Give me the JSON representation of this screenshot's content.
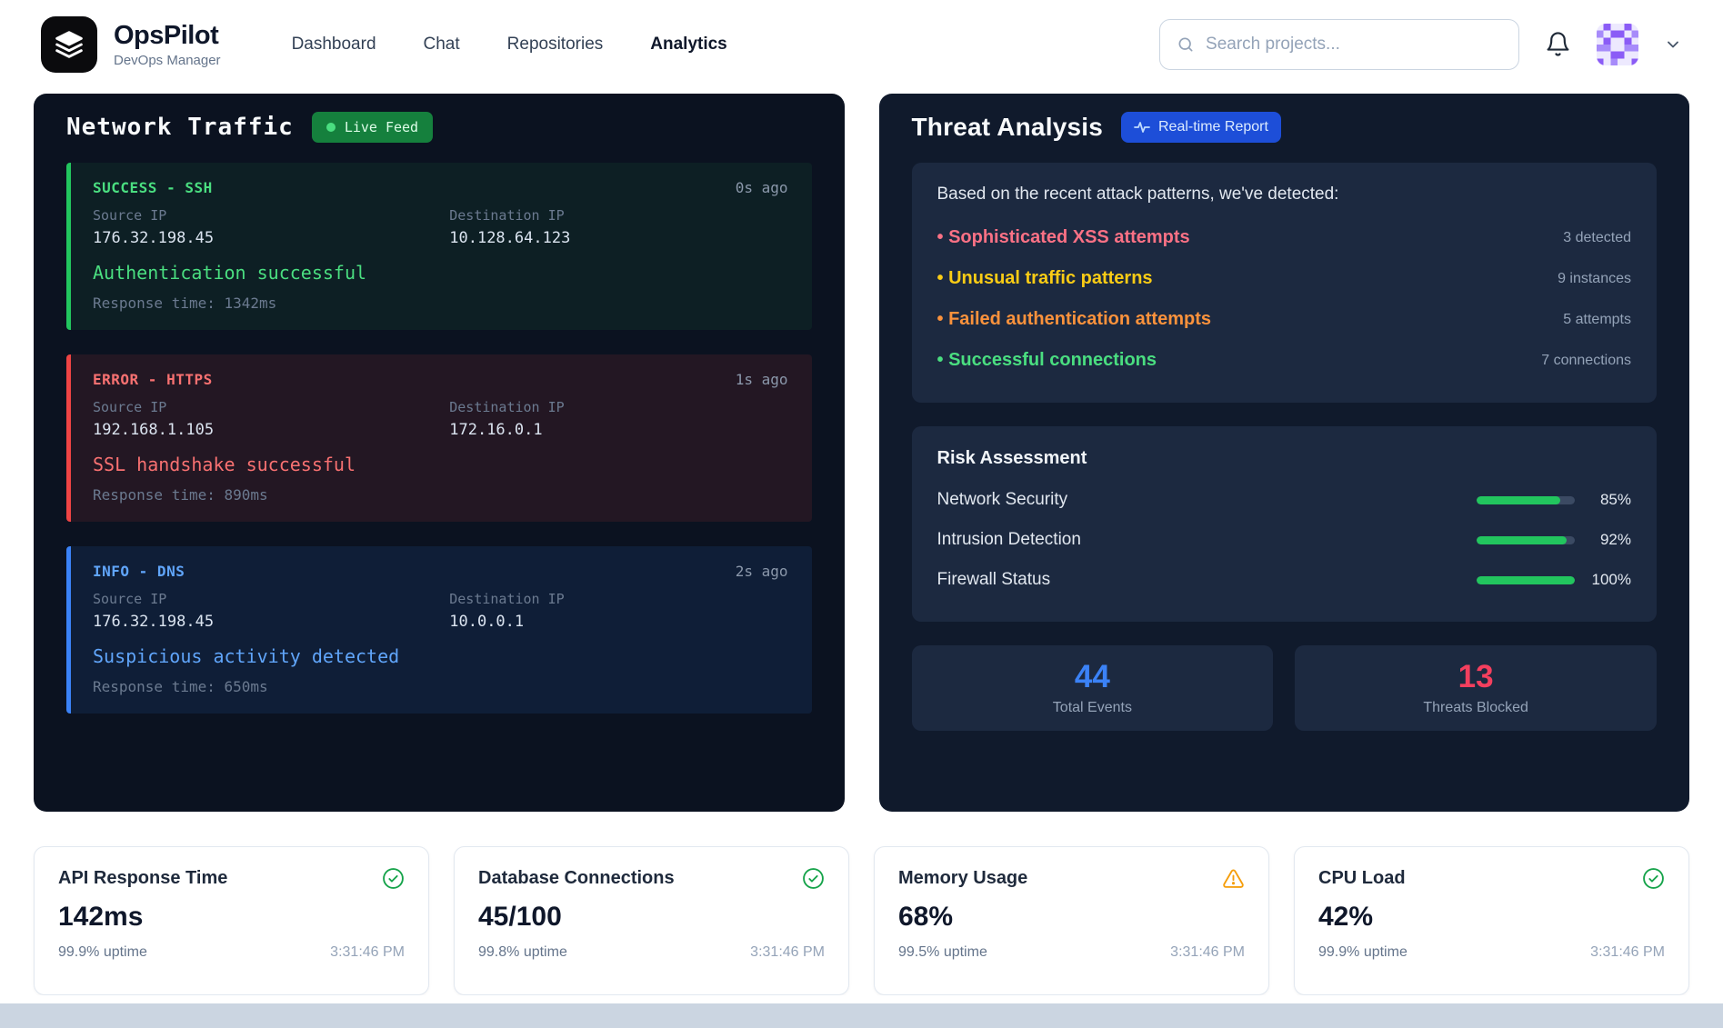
{
  "palette": {
    "success": "#22c55e",
    "error": "#ef4444",
    "info": "#3b82f6",
    "warning": "#f59e0b",
    "badge_live_bg": "#15803d",
    "badge_report_bg": "#1d4ed8"
  },
  "header": {
    "app_name": "OpsPilot",
    "app_subtitle": "DevOps Manager",
    "nav": [
      {
        "label": "Dashboard",
        "active": false
      },
      {
        "label": "Chat",
        "active": false
      },
      {
        "label": "Repositories",
        "active": false
      },
      {
        "label": "Analytics",
        "active": true
      }
    ],
    "search_placeholder": "Search projects..."
  },
  "network_traffic": {
    "title": "Network Traffic",
    "badge": "Live Feed",
    "labels": {
      "source": "Source IP",
      "dest": "Destination IP"
    },
    "entries": [
      {
        "level": "SUCCESS - SSH",
        "time_ago": "0s ago",
        "source_ip": "176.32.198.45",
        "dest_ip": "10.128.64.123",
        "message": "Authentication successful",
        "response": "Response time: 1342ms"
      },
      {
        "level": "ERROR - HTTPS",
        "time_ago": "1s ago",
        "source_ip": "192.168.1.105",
        "dest_ip": "172.16.0.1",
        "message": "SSL handshake successful",
        "response": "Response time: 890ms"
      },
      {
        "level": "INFO - DNS",
        "time_ago": "2s ago",
        "source_ip": "176.32.198.45",
        "dest_ip": "10.0.0.1",
        "message": "Suspicious activity detected",
        "response": "Response time: 650ms"
      }
    ]
  },
  "threat_analysis": {
    "title": "Threat Analysis",
    "badge": "Real-time Report",
    "intro": "Based on the recent attack patterns, we've detected:",
    "items": [
      {
        "label": "Sophisticated XSS attempts",
        "count": "3 detected",
        "color": "#fb7185"
      },
      {
        "label": "Unusual traffic patterns",
        "count": "9 instances",
        "color": "#facc15"
      },
      {
        "label": "Failed authentication attempts",
        "count": "5 attempts",
        "color": "#fb923c"
      },
      {
        "label": "Successful connections",
        "count": "7 connections",
        "color": "#4ade80"
      }
    ],
    "risk": {
      "title": "Risk Assessment",
      "rows": [
        {
          "label": "Network Security",
          "percent": 85,
          "display": "85%"
        },
        {
          "label": "Intrusion Detection",
          "percent": 92,
          "display": "92%"
        },
        {
          "label": "Firewall Status",
          "percent": 100,
          "display": "100%"
        }
      ]
    },
    "stats": [
      {
        "value": "44",
        "label": "Total Events",
        "color": "#3b82f6"
      },
      {
        "value": "13",
        "label": "Threats Blocked",
        "color": "#f43f5e"
      }
    ]
  },
  "metrics": [
    {
      "title": "API Response Time",
      "status": "ok",
      "value": "142ms",
      "uptime": "99.9% uptime",
      "time": "3:31:46 PM"
    },
    {
      "title": "Database Connections",
      "status": "ok",
      "value": "45/100",
      "uptime": "99.8% uptime",
      "time": "3:31:46 PM"
    },
    {
      "title": "Memory Usage",
      "status": "warning",
      "value": "68%",
      "uptime": "99.5% uptime",
      "time": "3:31:46 PM"
    },
    {
      "title": "CPU Load",
      "status": "ok",
      "value": "42%",
      "uptime": "99.9% uptime",
      "time": "3:31:46 PM"
    }
  ]
}
